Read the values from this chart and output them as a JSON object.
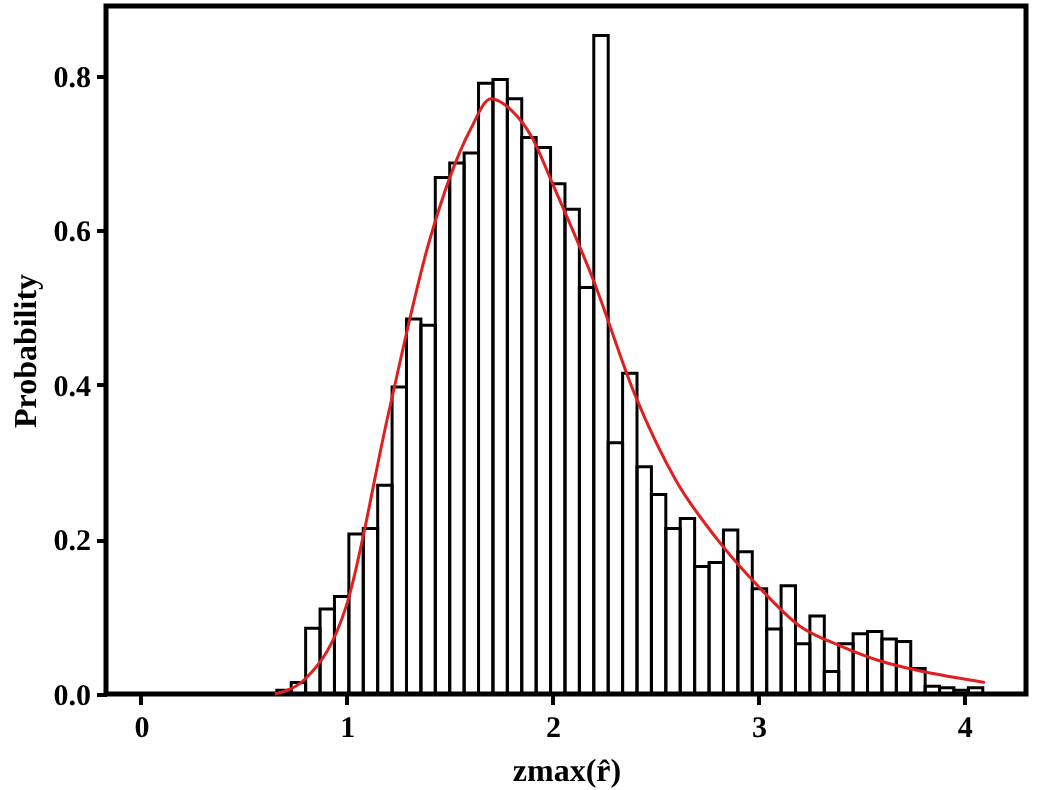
{
  "chart_data": {
    "type": "histogram",
    "xlabel": "zmax(r̂)",
    "ylabel": "Probability",
    "color": "#000000",
    "bins": [
      0.66,
      0.73,
      0.8,
      0.87,
      0.94,
      1.01,
      1.08,
      1.15,
      1.22,
      1.29,
      1.36,
      1.43,
      1.5,
      1.57,
      1.64,
      1.71,
      1.78,
      1.85,
      1.92,
      1.99,
      2.06,
      2.13,
      2.2,
      2.27,
      2.34,
      2.41,
      2.48,
      2.55,
      2.62,
      2.69,
      2.76,
      2.83,
      2.9,
      2.97,
      3.04,
      3.11,
      3.18,
      3.25,
      3.32,
      3.39,
      3.46,
      3.53,
      3.6,
      3.67,
      3.74,
      3.81,
      3.88,
      3.95,
      4.02,
      4.09
    ],
    "values": [
      0.005,
      0.015,
      0.085,
      0.11,
      0.126,
      0.207,
      0.214,
      0.27,
      0.397,
      0.485,
      0.477,
      0.668,
      0.687,
      0.7,
      0.79,
      0.795,
      0.77,
      0.72,
      0.707,
      0.66,
      0.627,
      0.526,
      0.852,
      0.325,
      0.415,
      0.294,
      0.258,
      0.214,
      0.227,
      0.165,
      0.17,
      0.212,
      0.184,
      0.136,
      0.084,
      0.14,
      0.065,
      0.101,
      0.029,
      0.065,
      0.078,
      0.081,
      0.071,
      0.068,
      0.033,
      0.01,
      0.008,
      0.005,
      0.008
    ],
    "series": [
      {
        "type": "line",
        "color": "#e02020",
        "x": [
          0.65,
          0.8,
          1.0,
          1.2,
          1.4,
          1.6,
          1.7,
          1.8,
          1.9,
          2.0,
          2.2,
          2.4,
          2.6,
          2.8,
          3.0,
          3.2,
          3.4,
          3.6,
          3.8,
          4.1
        ],
        "values": [
          0.0,
          0.02,
          0.116,
          0.36,
          0.585,
          0.73,
          0.77,
          0.755,
          0.72,
          0.66,
          0.534,
          0.387,
          0.276,
          0.2,
          0.139,
          0.088,
          0.062,
          0.042,
          0.029,
          0.015
        ]
      }
    ],
    "xlim": [
      -0.17,
      4.3
    ],
    "xticks": [
      0,
      1,
      2,
      3,
      4
    ],
    "ylim": [
      0,
      0.89
    ],
    "yticks": [
      {
        "value": 0,
        "label": "0.0"
      },
      0.2,
      0.4,
      0.6,
      0.8
    ],
    "grid": false
  }
}
